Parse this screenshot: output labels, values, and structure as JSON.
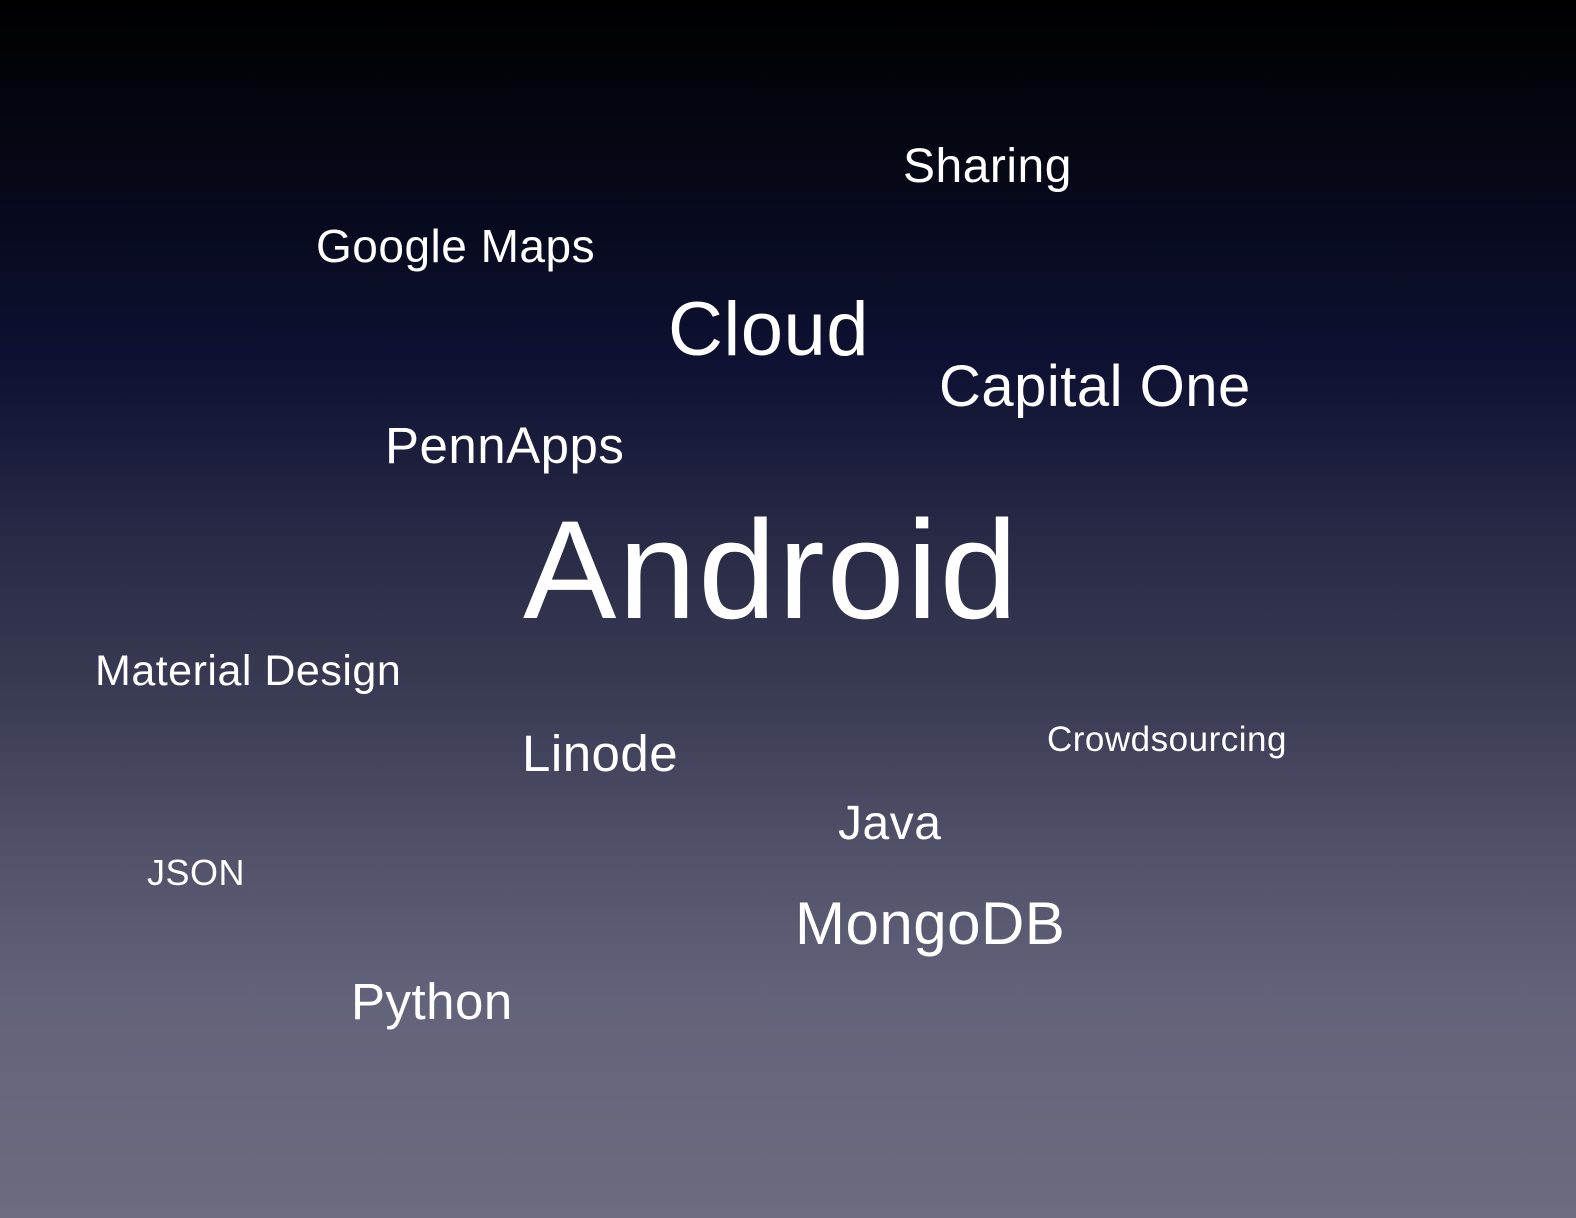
{
  "slide": {
    "words": {
      "sharing": "Sharing",
      "google_maps": "Google Maps",
      "cloud": "Cloud",
      "capital_one": "Capital One",
      "pennapps": "PennApps",
      "android": "Android",
      "material_design": "Material Design",
      "crowdsourcing": "Crowdsourcing",
      "linode": "Linode",
      "java": "Java",
      "json": "JSON",
      "mongodb": "MongoDB",
      "python": "Python"
    }
  }
}
